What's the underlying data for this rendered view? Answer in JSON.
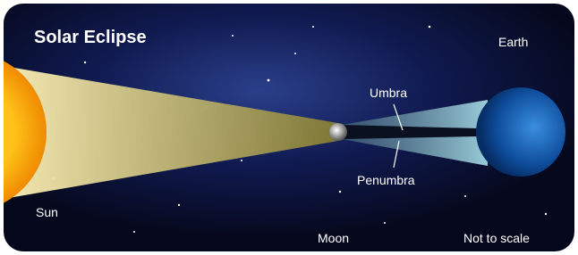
{
  "title": "Solar Eclipse",
  "labels": {
    "earth": "Earth",
    "umbra": "Umbra",
    "penumbra": "Penumbra",
    "sun": "Sun",
    "moon": "Moon",
    "note": "Not to scale"
  }
}
